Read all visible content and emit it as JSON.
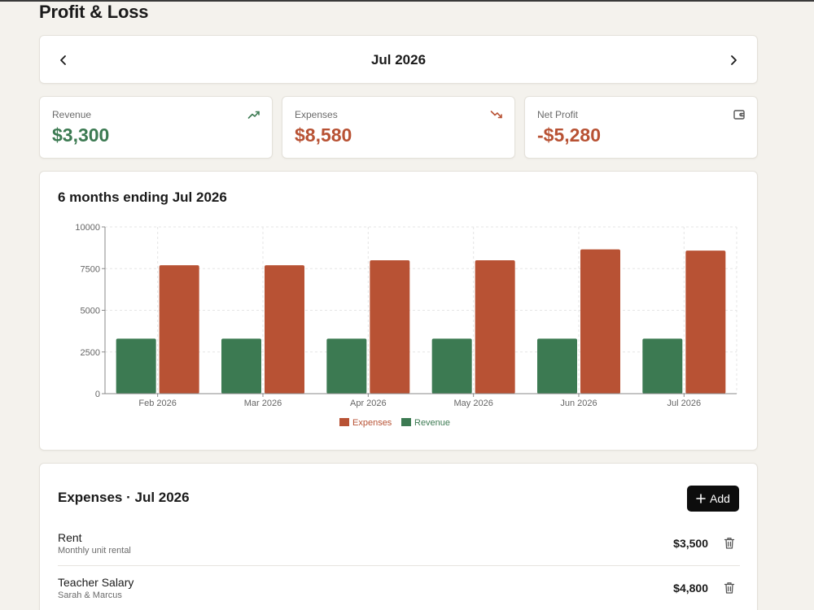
{
  "page": {
    "title": "Profit & Loss"
  },
  "month_nav": {
    "label": "Jul 2026"
  },
  "stats": {
    "revenue": {
      "label": "Revenue",
      "value": "$3,300",
      "color": "#3c7a52",
      "icon": "trending-up-icon"
    },
    "expenses": {
      "label": "Expenses",
      "value": "$8,580",
      "color": "#b85234",
      "icon": "trending-down-icon"
    },
    "net": {
      "label": "Net Profit",
      "value": "-$5,280",
      "color": "#b85234",
      "icon": "wallet-icon"
    }
  },
  "chart_card": {
    "title": "6 months ending Jul 2026"
  },
  "chart_data": {
    "type": "bar",
    "categories": [
      "Feb 2026",
      "Mar 2026",
      "Apr 2026",
      "May 2026",
      "Jun 2026",
      "Jul 2026"
    ],
    "series": [
      {
        "name": "Revenue",
        "color": "#3c7a52",
        "values": [
          3300,
          3300,
          3300,
          3300,
          3300,
          3300
        ]
      },
      {
        "name": "Expenses",
        "color": "#b85234",
        "values": [
          7700,
          7700,
          8000,
          8000,
          8650,
          8580
        ]
      }
    ],
    "legend_order": [
      "Expenses",
      "Revenue"
    ],
    "yticks": [
      0,
      2500,
      5000,
      7500,
      10000
    ],
    "ylim": [
      0,
      10000
    ],
    "grid": true,
    "legend_position": "bottom-center"
  },
  "expenses_section": {
    "title": "Expenses · Jul 2026",
    "add_label": "Add",
    "rows": [
      {
        "name": "Rent",
        "note": "Monthly unit rental",
        "amount": "$3,500"
      },
      {
        "name": "Teacher Salary",
        "note": "Sarah & Marcus",
        "amount": "$4,800"
      }
    ]
  }
}
